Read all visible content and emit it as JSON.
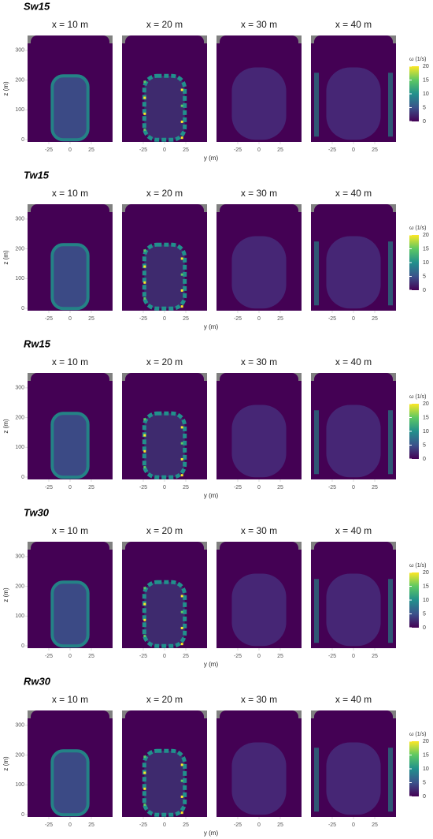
{
  "chart_data": [
    {
      "type": "heatmap",
      "title": "Sw15",
      "panels": [
        "x = 10 m",
        "x = 20 m",
        "x = 30 m",
        "x = 40 m"
      ],
      "xlabel": "y (m)",
      "ylabel": "z (m)",
      "xlim": [
        -50,
        50
      ],
      "xticks": [
        -25,
        0,
        25
      ],
      "ylim": [
        -8,
        350
      ],
      "yticks": [
        0,
        100,
        200,
        300
      ],
      "grid": true,
      "colorbar": {
        "title": "ω (1/s)",
        "lim": [
          0,
          20
        ],
        "ticks": [
          0,
          5,
          10,
          15,
          20
        ],
        "colors": [
          "#440154",
          "#3b528b",
          "#21908c",
          "#5dc863",
          "#fde725"
        ]
      }
    },
    {
      "type": "heatmap",
      "title": "Tw15",
      "panels": [
        "x = 10 m",
        "x = 20 m",
        "x = 30 m",
        "x = 40 m"
      ],
      "xlabel": "y (m)",
      "ylabel": "z (m)",
      "xlim": [
        -50,
        50
      ],
      "xticks": [
        -25,
        0,
        25
      ],
      "ylim": [
        -8,
        350
      ],
      "yticks": [
        0,
        100,
        200,
        300
      ],
      "grid": true,
      "colorbar": {
        "title": "ω (1/s)",
        "lim": [
          0,
          20
        ],
        "ticks": [
          0,
          5,
          10,
          15,
          20
        ],
        "colors": [
          "#440154",
          "#3b528b",
          "#21908c",
          "#5dc863",
          "#fde725"
        ]
      }
    },
    {
      "type": "heatmap",
      "title": "Rw15",
      "panels": [
        "x = 10 m",
        "x = 20 m",
        "x = 30 m",
        "x = 40 m"
      ],
      "xlabel": "y (m)",
      "ylabel": "z (m)",
      "xlim": [
        -50,
        50
      ],
      "xticks": [
        -25,
        0,
        25
      ],
      "ylim": [
        -8,
        350
      ],
      "yticks": [
        0,
        100,
        200,
        300
      ],
      "grid": true,
      "colorbar": {
        "title": "ω (1/s)",
        "lim": [
          0,
          20
        ],
        "ticks": [
          0,
          5,
          10,
          15,
          20
        ],
        "colors": [
          "#440154",
          "#3b528b",
          "#21908c",
          "#5dc863",
          "#fde725"
        ]
      }
    },
    {
      "type": "heatmap",
      "title": "Tw30",
      "panels": [
        "x = 10 m",
        "x = 20 m",
        "x = 30 m",
        "x = 40 m"
      ],
      "xlabel": "y (m)",
      "ylabel": "z (m)",
      "xlim": [
        -50,
        50
      ],
      "xticks": [
        -25,
        0,
        25
      ],
      "ylim": [
        -8,
        350
      ],
      "yticks": [
        0,
        100,
        200,
        300
      ],
      "grid": true,
      "colorbar": {
        "title": "ω (1/s)",
        "lim": [
          0,
          20
        ],
        "ticks": [
          0,
          5,
          10,
          15,
          20
        ],
        "colors": [
          "#440154",
          "#3b528b",
          "#21908c",
          "#5dc863",
          "#fde725"
        ]
      }
    },
    {
      "type": "heatmap",
      "title": "Rw30",
      "panels": [
        "x = 10 m",
        "x = 20 m",
        "x = 30 m",
        "x = 40 m"
      ],
      "xlabel": "y (m)",
      "ylabel": "z (m)",
      "xlim": [
        -50,
        50
      ],
      "xticks": [
        -25,
        0,
        25
      ],
      "ylim": [
        -8,
        350
      ],
      "yticks": [
        0,
        100,
        200,
        300
      ],
      "grid": true,
      "colorbar": {
        "title": "ω (1/s)",
        "lim": [
          0,
          20
        ],
        "ticks": [
          0,
          5,
          10,
          15,
          20
        ],
        "colors": [
          "#440154",
          "#3b528b",
          "#21908c",
          "#5dc863",
          "#fde725"
        ]
      }
    }
  ]
}
